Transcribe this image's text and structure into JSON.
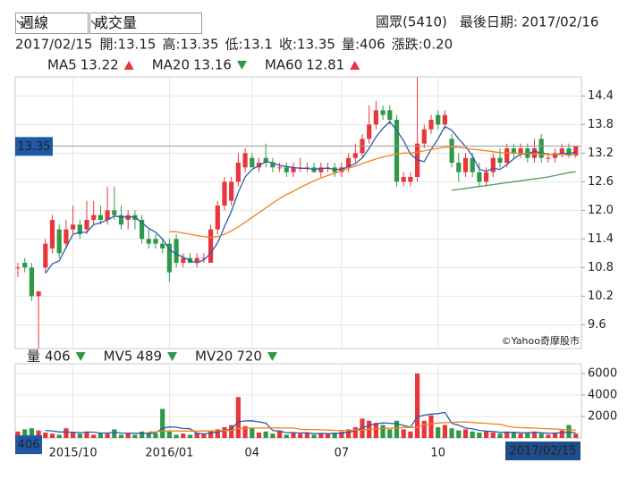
{
  "toolbar": {
    "period": "週線",
    "indicator": "成交量"
  },
  "header": {
    "stock": "國眾(5410)",
    "last_date_label": "最後日期:",
    "last_date": "2017/02/16"
  },
  "chart_data": {
    "type": "candlestick",
    "info": {
      "date": "2017/02/15",
      "open_label": "開:",
      "high_label": "高:",
      "low_label": "低:",
      "close_label": "收:",
      "volume_label": "量:",
      "change_label": "漲跌:",
      "change": "0.20"
    },
    "categories": [
      null,
      null,
      null,
      null,
      null,
      null,
      null,
      null,
      "2015/10",
      null,
      null,
      null,
      null,
      null,
      null,
      null,
      null,
      null,
      null,
      null,
      null,
      null,
      "2016/01",
      null,
      null,
      null,
      null,
      null,
      null,
      null,
      null,
      null,
      null,
      null,
      "04",
      null,
      null,
      null,
      null,
      null,
      null,
      null,
      null,
      null,
      null,
      null,
      null,
      "07",
      null,
      null,
      null,
      null,
      null,
      null,
      null,
      null,
      null,
      null,
      null,
      null,
      null,
      "10",
      null,
      null,
      null,
      null,
      null,
      null,
      null,
      null,
      null,
      null,
      null,
      null,
      null,
      null,
      null,
      null,
      null,
      null,
      null,
      null
    ],
    "candles": {
      "open": [
        10.8,
        10.9,
        10.8,
        10.2,
        10.8,
        11.2,
        11.6,
        11.3,
        11.6,
        11.7,
        11.6,
        11.8,
        11.9,
        11.8,
        12.0,
        11.9,
        11.8,
        11.9,
        11.8,
        11.4,
        11.4,
        11.3,
        11.3,
        11.4,
        10.9,
        11.0,
        10.9,
        11.0,
        10.9,
        11.6,
        12.1,
        12.2,
        12.6,
        12.9,
        13.1,
        12.9,
        13.1,
        13.0,
        12.9,
        12.9,
        12.8,
        12.9,
        12.9,
        12.9,
        12.8,
        12.9,
        12.9,
        12.8,
        12.9,
        13.1,
        13.2,
        13.5,
        13.8,
        14.1,
        14.1,
        13.9,
        12.6,
        12.6,
        12.7,
        13.4,
        13.7,
        14.0,
        13.8,
        13.5,
        13.0,
        12.8,
        13.1,
        12.8,
        12.6,
        12.8,
        13.1,
        13.0,
        13.3,
        13.2,
        13.3,
        13.1,
        13.5,
        13.1,
        13.1,
        13.2,
        13.3,
        13.15
      ],
      "high": [
        10.9,
        11.0,
        10.9,
        10.3,
        11.4,
        11.9,
        11.7,
        11.8,
        12.1,
        11.8,
        12.2,
        12.2,
        12.1,
        12.5,
        12.5,
        12.1,
        12.0,
        12.0,
        11.9,
        11.6,
        11.5,
        11.4,
        11.4,
        11.5,
        11.1,
        11.1,
        11.1,
        11.1,
        11.7,
        12.2,
        12.7,
        12.7,
        13.2,
        13.3,
        13.2,
        13.1,
        13.4,
        13.1,
        13.0,
        13.0,
        13.0,
        13.1,
        13.0,
        13.0,
        13.0,
        13.0,
        13.0,
        13.0,
        13.2,
        13.4,
        13.6,
        14.2,
        14.3,
        14.2,
        14.2,
        14.0,
        12.8,
        12.8,
        14.8,
        13.8,
        14.0,
        14.1,
        14.1,
        13.6,
        13.2,
        13.2,
        13.2,
        13.0,
        12.9,
        13.2,
        13.3,
        13.4,
        13.4,
        13.4,
        13.4,
        13.5,
        13.6,
        13.2,
        13.3,
        13.4,
        13.4,
        13.35
      ],
      "low": [
        10.6,
        10.7,
        10.1,
        9.1,
        10.7,
        11.1,
        11.0,
        11.2,
        11.5,
        11.4,
        11.5,
        11.7,
        11.7,
        11.7,
        11.8,
        11.6,
        11.6,
        11.6,
        11.3,
        11.2,
        11.2,
        11.1,
        10.5,
        10.8,
        10.8,
        10.9,
        10.8,
        10.9,
        10.9,
        11.5,
        12.0,
        12.1,
        12.5,
        12.8,
        12.9,
        12.8,
        12.9,
        12.8,
        12.8,
        12.7,
        12.7,
        12.8,
        12.8,
        12.8,
        12.7,
        12.8,
        12.7,
        12.7,
        12.8,
        13.0,
        13.1,
        13.4,
        13.7,
        13.9,
        13.8,
        12.5,
        12.5,
        12.5,
        12.6,
        13.3,
        13.6,
        13.7,
        13.7,
        12.9,
        12.6,
        12.7,
        12.7,
        12.5,
        12.5,
        12.7,
        12.9,
        12.9,
        13.1,
        13.1,
        13.0,
        13.0,
        13.0,
        13.0,
        13.0,
        13.1,
        13.1,
        13.1
      ],
      "close": [
        10.8,
        10.8,
        10.2,
        10.3,
        11.3,
        11.8,
        11.1,
        11.6,
        11.7,
        11.5,
        11.8,
        11.9,
        11.8,
        12.0,
        11.9,
        11.7,
        11.9,
        11.8,
        11.4,
        11.3,
        11.3,
        11.2,
        10.7,
        10.9,
        11.0,
        10.9,
        11.0,
        11.0,
        11.6,
        12.1,
        12.6,
        12.6,
        13.0,
        13.2,
        12.9,
        13.0,
        13.0,
        12.9,
        12.9,
        12.8,
        12.9,
        12.9,
        12.9,
        12.8,
        12.9,
        12.9,
        12.8,
        12.9,
        13.1,
        13.2,
        13.5,
        13.8,
        14.1,
        14.0,
        13.9,
        12.6,
        12.7,
        12.7,
        13.4,
        13.7,
        13.9,
        13.8,
        14.0,
        13.0,
        12.8,
        13.1,
        12.8,
        12.6,
        12.8,
        13.1,
        13.0,
        13.3,
        13.2,
        13.3,
        13.1,
        13.3,
        13.1,
        13.1,
        13.2,
        13.3,
        13.15,
        13.35
      ]
    },
    "up_color": "#e8363c",
    "down_color": "#2e9a47",
    "ylim": [
      9.1,
      14.8
    ],
    "yticks": [
      9.6,
      10.2,
      10.8,
      11.4,
      {
        "value": 12,
        "label": "12.0"
      },
      12.6,
      13.2,
      13.8,
      14.4
    ],
    "grid": true,
    "series": [
      {
        "name": "MA5",
        "color": "#2a5caa",
        "trend": "up",
        "values": [
          null,
          null,
          null,
          null,
          10.68,
          10.88,
          10.94,
          11.22,
          11.5,
          11.54,
          11.54,
          11.7,
          11.74,
          11.8,
          11.88,
          11.86,
          11.86,
          11.86,
          11.74,
          11.62,
          11.54,
          11.4,
          11.18,
          11.08,
          11.02,
          10.94,
          10.9,
          10.96,
          11.1,
          11.32,
          11.66,
          11.98,
          12.38,
          12.7,
          12.86,
          12.94,
          13.02,
          13.0,
          12.94,
          12.92,
          12.9,
          12.88,
          12.88,
          12.86,
          12.88,
          12.88,
          12.86,
          12.86,
          12.92,
          12.98,
          13.1,
          13.3,
          13.54,
          13.72,
          13.86,
          13.68,
          13.46,
          13.18,
          13.06,
          13.02,
          13.28,
          13.5,
          13.76,
          13.68,
          13.5,
          13.34,
          13.14,
          12.86,
          12.82,
          12.88,
          12.86,
          12.96,
          13.08,
          13.18,
          13.18,
          13.24,
          13.2,
          13.18,
          13.16,
          13.2,
          13.19,
          13.22
        ]
      },
      {
        "name": "MA20",
        "color": "#f0821e",
        "trend": "down",
        "values": [
          null,
          null,
          null,
          null,
          null,
          null,
          null,
          null,
          null,
          null,
          null,
          null,
          null,
          null,
          null,
          null,
          null,
          null,
          null,
          null,
          null,
          null,
          11.55,
          11.55,
          11.52,
          11.5,
          11.47,
          11.45,
          11.43,
          11.45,
          11.5,
          11.57,
          11.65,
          11.75,
          11.85,
          11.95,
          12.05,
          12.15,
          12.25,
          12.33,
          12.4,
          12.48,
          12.55,
          12.62,
          12.68,
          12.73,
          12.78,
          12.83,
          12.88,
          12.93,
          12.98,
          13.03,
          13.08,
          13.12,
          13.15,
          13.18,
          13.2,
          13.2,
          13.22,
          13.25,
          13.28,
          13.3,
          13.32,
          13.33,
          13.32,
          13.3,
          13.28,
          13.27,
          13.25,
          13.23,
          13.21,
          13.2,
          13.2,
          13.19,
          13.19,
          13.18,
          13.18,
          13.17,
          13.17,
          13.17,
          13.16,
          13.16
        ]
      },
      {
        "name": "MA60",
        "color": "#4d9a5b",
        "trend": "up",
        "values": [
          null,
          null,
          null,
          null,
          null,
          null,
          null,
          null,
          null,
          null,
          null,
          null,
          null,
          null,
          null,
          null,
          null,
          null,
          null,
          null,
          null,
          null,
          null,
          null,
          null,
          null,
          null,
          null,
          null,
          null,
          null,
          null,
          null,
          null,
          null,
          null,
          null,
          null,
          null,
          null,
          null,
          null,
          null,
          null,
          null,
          null,
          null,
          null,
          null,
          null,
          null,
          null,
          null,
          null,
          null,
          null,
          null,
          null,
          null,
          null,
          null,
          null,
          null,
          12.42,
          12.44,
          12.46,
          12.48,
          12.5,
          12.52,
          12.54,
          12.56,
          12.58,
          12.6,
          12.62,
          12.64,
          12.66,
          12.68,
          12.7,
          12.73,
          12.76,
          12.79,
          12.81
        ]
      }
    ],
    "watermark": "©Yahoo奇摩股市",
    "volume": {
      "name": "量",
      "trend": "down",
      "values": [
        600,
        800,
        900,
        700,
        500,
        400,
        300,
        900,
        500,
        400,
        600,
        300,
        500,
        400,
        800,
        300,
        400,
        300,
        600,
        500,
        400,
        2700,
        600,
        300,
        400,
        300,
        500,
        400,
        700,
        800,
        1000,
        1200,
        3800,
        1100,
        900,
        500,
        600,
        400,
        700,
        300,
        500,
        400,
        500,
        300,
        400,
        400,
        500,
        600,
        800,
        1000,
        1800,
        1600,
        1400,
        1200,
        800,
        1600,
        800,
        600,
        6000,
        1600,
        2100,
        1000,
        1200,
        900,
        700,
        800,
        600,
        500,
        600,
        500,
        400,
        600,
        500,
        400,
        500,
        600,
        400,
        300,
        500,
        700,
        1200,
        406
      ],
      "ylim": [
        0,
        6900
      ],
      "yticks": [
        2000,
        4000,
        6000
      ],
      "tick_color": "#e8363c",
      "series": [
        {
          "name": "MV5",
          "color": "#2a5caa",
          "trend": "down",
          "values": [
            null,
            null,
            null,
            null,
            700,
            660,
            560,
            560,
            520,
            500,
            540,
            540,
            460,
            460,
            520,
            460,
            440,
            440,
            440,
            420,
            440,
            900,
            1020,
            1000,
            880,
            860,
            420,
            380,
            460,
            540,
            680,
            820,
            1500,
            1580,
            1600,
            1500,
            1380,
            700,
            620,
            500,
            500,
            460,
            480,
            400,
            420,
            400,
            420,
            440,
            540,
            660,
            940,
            1160,
            1320,
            1400,
            1360,
            1320,
            1160,
            1000,
            1960,
            2120,
            2220,
            2260,
            2380,
            1360,
            1180,
            920,
            840,
            700,
            640,
            600,
            520,
            520,
            520,
            480,
            480,
            520,
            480,
            440,
            460,
            500,
            540,
            489
          ]
        },
        {
          "name": "MV20",
          "color": "#f0821e",
          "trend": "down",
          "values": [
            null,
            null,
            null,
            null,
            null,
            null,
            null,
            null,
            null,
            null,
            null,
            null,
            null,
            null,
            null,
            null,
            null,
            null,
            null,
            560,
            560,
            660,
            660,
            650,
            640,
            640,
            640,
            650,
            660,
            670,
            690,
            710,
            870,
            900,
            920,
            920,
            930,
            930,
            930,
            920,
            920,
            800,
            780,
            780,
            760,
            740,
            700,
            700,
            700,
            720,
            750,
            800,
            840,
            880,
            900,
            920,
            980,
            980,
            980,
            1250,
            1310,
            1390,
            1420,
            1450,
            1480,
            1480,
            1440,
            1400,
            1360,
            1300,
            1270,
            1100,
            1000,
            960,
            940,
            920,
            880,
            860,
            820,
            780,
            750,
            720
          ]
        }
      ]
    }
  }
}
